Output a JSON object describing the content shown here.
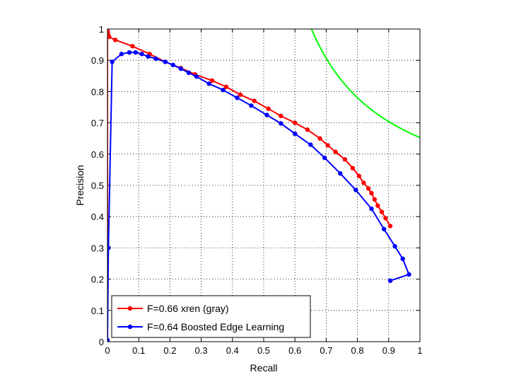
{
  "chart_data": {
    "type": "line",
    "title": "",
    "xlabel": "Recall",
    "ylabel": "Precision",
    "xlim": [
      0,
      1
    ],
    "ylim": [
      0,
      1
    ],
    "grid": true,
    "legend_position": "bottom-left",
    "x_ticks": [
      "0",
      "0.1",
      "0.2",
      "0.3",
      "0.4",
      "0.5",
      "0.6",
      "0.7",
      "0.8",
      "0.9",
      "1"
    ],
    "y_ticks": [
      "0",
      "0.1",
      "0.2",
      "0.3",
      "0.4",
      "0.5",
      "0.6",
      "0.7",
      "0.8",
      "0.9",
      "1"
    ],
    "series": [
      {
        "name": "F=0.66 xren (gray)",
        "color": "#ff0000",
        "x": [
          0.0,
          0.0,
          0.001,
          0.003,
          0.005,
          0.025,
          0.08,
          0.135,
          0.185,
          0.235,
          0.28,
          0.335,
          0.38,
          0.425,
          0.47,
          0.515,
          0.555,
          0.6,
          0.64,
          0.68,
          0.705,
          0.73,
          0.76,
          0.785,
          0.805,
          0.82,
          0.835,
          0.845,
          0.855,
          0.865,
          0.878,
          0.89,
          0.905
        ],
        "y": [
          0.0,
          1.0,
          0.99,
          0.98,
          0.975,
          0.965,
          0.945,
          0.92,
          0.895,
          0.875,
          0.855,
          0.835,
          0.815,
          0.79,
          0.77,
          0.745,
          0.722,
          0.7,
          0.678,
          0.65,
          0.628,
          0.607,
          0.583,
          0.555,
          0.53,
          0.508,
          0.49,
          0.475,
          0.455,
          0.435,
          0.415,
          0.395,
          0.37
        ]
      },
      {
        "name": "F=0.64 Boosted Edge Learning",
        "color": "#0000ff",
        "x": [
          0.0,
          0.0,
          0.003,
          0.015,
          0.045,
          0.07,
          0.09,
          0.11,
          0.13,
          0.155,
          0.185,
          0.21,
          0.235,
          0.26,
          0.285,
          0.325,
          0.37,
          0.415,
          0.46,
          0.51,
          0.555,
          0.6,
          0.65,
          0.695,
          0.745,
          0.795,
          0.845,
          0.885,
          0.92,
          0.945,
          0.965,
          0.905
        ],
        "y": [
          0.0,
          0.005,
          0.3,
          0.895,
          0.92,
          0.925,
          0.925,
          0.92,
          0.912,
          0.905,
          0.895,
          0.885,
          0.873,
          0.86,
          0.848,
          0.825,
          0.805,
          0.78,
          0.755,
          0.725,
          0.698,
          0.665,
          0.63,
          0.588,
          0.538,
          0.485,
          0.425,
          0.36,
          0.305,
          0.265,
          0.215,
          0.195
        ]
      }
    ],
    "iso_f_curve": {
      "color": "#00ff00",
      "F": 0.79
    }
  }
}
